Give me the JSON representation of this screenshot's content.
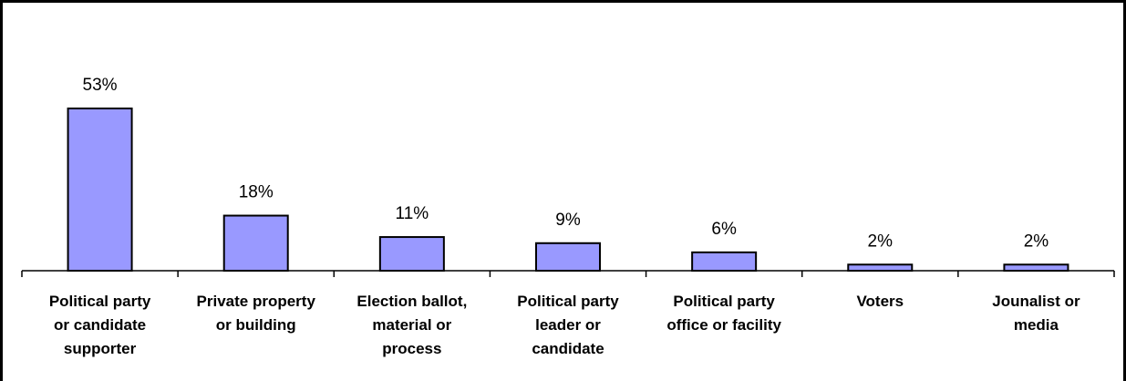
{
  "chart_data": {
    "type": "bar",
    "title": "",
    "xlabel": "",
    "ylabel": "",
    "ylim": [
      0,
      60
    ],
    "grid": false,
    "legend": "none",
    "categories": [
      [
        "Political party",
        "or candidate",
        "supporter"
      ],
      [
        "Private property",
        "or building"
      ],
      [
        "Election ballot,",
        "material or",
        "process"
      ],
      [
        "Political party",
        "leader or",
        "candidate"
      ],
      [
        "Political party",
        "office or facility"
      ],
      [
        "Voters"
      ],
      [
        "Jounalist or",
        "media"
      ]
    ],
    "values": [
      53,
      18,
      11,
      9,
      6,
      2,
      2
    ],
    "value_labels": [
      "53%",
      "18%",
      "11%",
      "9%",
      "6%",
      "2%",
      "2%"
    ],
    "bar_color": "#9999ff",
    "bar_border_color": "#000000"
  }
}
